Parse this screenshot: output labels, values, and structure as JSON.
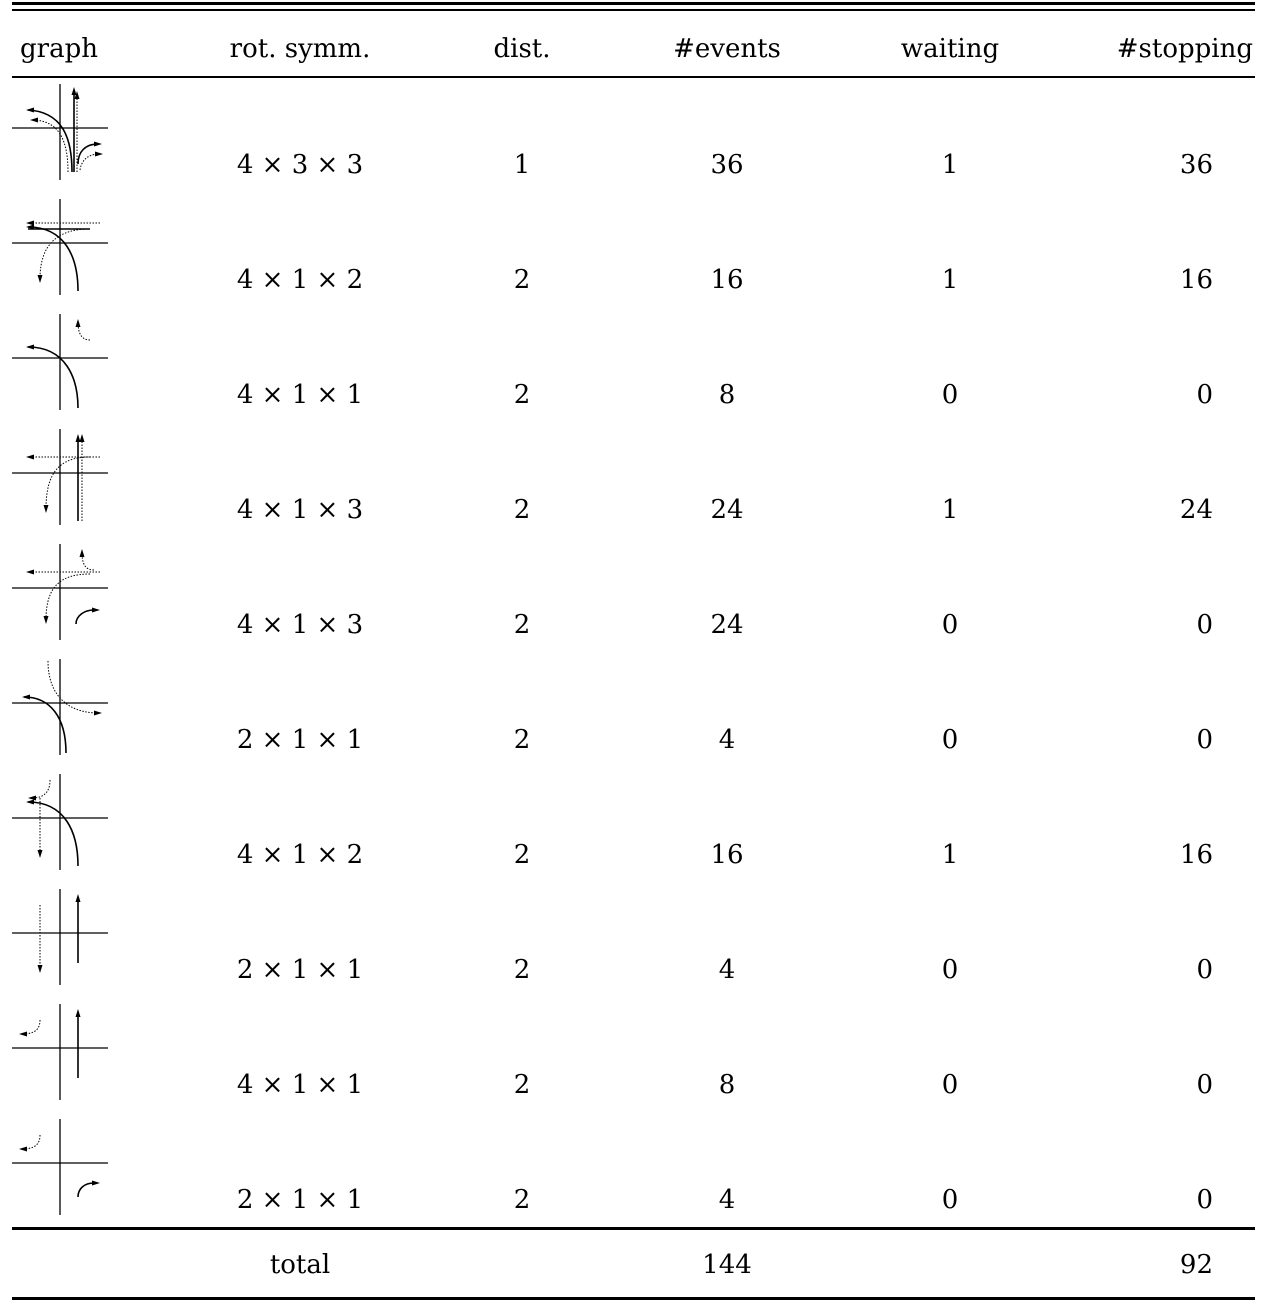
{
  "table": {
    "headers": {
      "graph": "graph",
      "rot_symm": "rot. symm.",
      "dist": "dist.",
      "events": "#events",
      "waiting": "waiting",
      "stopping": "#stopping"
    },
    "rows": [
      {
        "rot_symm": "4 × 3 × 3",
        "dist": "1",
        "events": "36",
        "waiting": "1",
        "stopping": "36",
        "graph_icon": "intersection-diagram-1-icon"
      },
      {
        "rot_symm": "4 × 1 × 2",
        "dist": "2",
        "events": "16",
        "waiting": "1",
        "stopping": "16",
        "graph_icon": "intersection-diagram-2-icon"
      },
      {
        "rot_symm": "4 × 1 × 1",
        "dist": "2",
        "events": "8",
        "waiting": "0",
        "stopping": "0",
        "graph_icon": "intersection-diagram-3-icon"
      },
      {
        "rot_symm": "4 × 1 × 3",
        "dist": "2",
        "events": "24",
        "waiting": "1",
        "stopping": "24",
        "graph_icon": "intersection-diagram-4-icon"
      },
      {
        "rot_symm": "4 × 1 × 3",
        "dist": "2",
        "events": "24",
        "waiting": "0",
        "stopping": "0",
        "graph_icon": "intersection-diagram-5-icon"
      },
      {
        "rot_symm": "2 × 1 × 1",
        "dist": "2",
        "events": "4",
        "waiting": "0",
        "stopping": "0",
        "graph_icon": "intersection-diagram-6-icon"
      },
      {
        "rot_symm": "4 × 1 × 2",
        "dist": "2",
        "events": "16",
        "waiting": "1",
        "stopping": "16",
        "graph_icon": "intersection-diagram-7-icon"
      },
      {
        "rot_symm": "2 × 1 × 1",
        "dist": "2",
        "events": "4",
        "waiting": "0",
        "stopping": "0",
        "graph_icon": "intersection-diagram-8-icon"
      },
      {
        "rot_symm": "4 × 1 × 1",
        "dist": "2",
        "events": "8",
        "waiting": "0",
        "stopping": "0",
        "graph_icon": "intersection-diagram-9-icon"
      },
      {
        "rot_symm": "2 × 1 × 1",
        "dist": "2",
        "events": "4",
        "waiting": "0",
        "stopping": "0",
        "graph_icon": "intersection-diagram-10-icon"
      }
    ],
    "total": {
      "label": "total",
      "events": "144",
      "stopping": "92"
    }
  }
}
